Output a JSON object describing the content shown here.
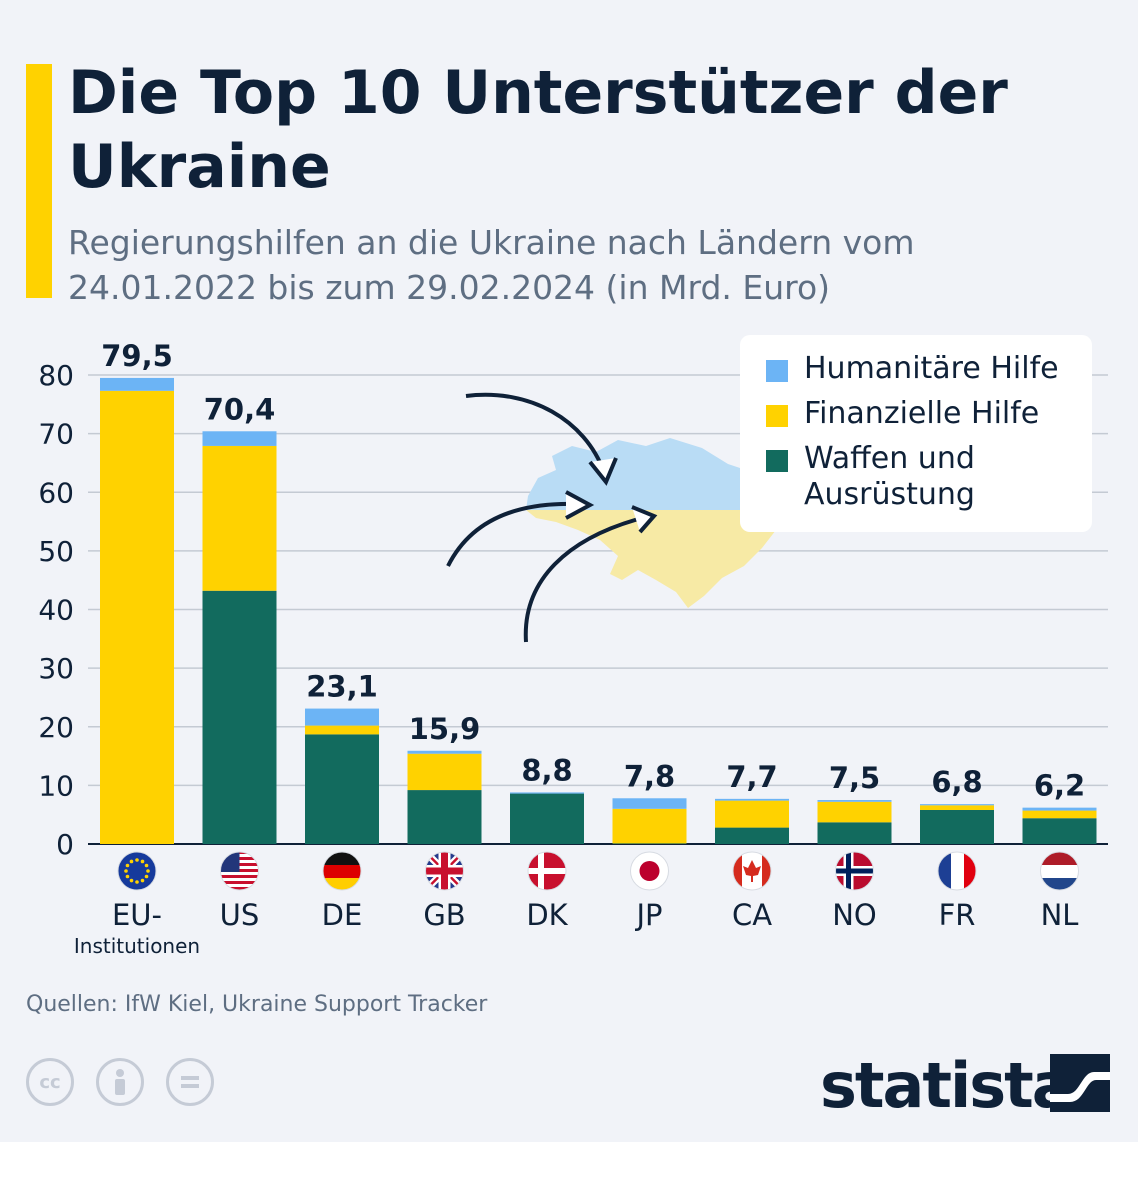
{
  "header": {
    "title": "Die Top 10 Unterstützer der Ukraine",
    "subtitle": "Regierungshilfen an die Ukraine nach Ländern vom 24.01.2022 bis zum 29.02.2024 (in Mrd. Euro)"
  },
  "legend": {
    "items": [
      {
        "label": "Humanitäre Hilfe",
        "color": "#6cb4f5"
      },
      {
        "label": "Finanzielle Hilfe",
        "color": "#ffd200"
      },
      {
        "label": "Waffen und Ausrüstung",
        "color": "#126b5e"
      }
    ]
  },
  "footer": {
    "source": "Quellen: IfW Kiel, Ukraine Support Tracker",
    "logo": "statista",
    "license_icons": [
      "cc-icon",
      "attribution-icon",
      "no-derivatives-icon"
    ]
  },
  "chart_data": {
    "type": "bar",
    "stacked": true,
    "categories": [
      "EU-Institutionen",
      "US",
      "DE",
      "GB",
      "DK",
      "JP",
      "CA",
      "NO",
      "FR",
      "NL"
    ],
    "category_labels": [
      {
        "main": "EU-",
        "sub": "Institutionen"
      },
      {
        "main": "US"
      },
      {
        "main": "DE"
      },
      {
        "main": "GB"
      },
      {
        "main": "DK"
      },
      {
        "main": "JP"
      },
      {
        "main": "CA"
      },
      {
        "main": "NO"
      },
      {
        "main": "FR"
      },
      {
        "main": "NL"
      }
    ],
    "flags": [
      "eu-flag-icon",
      "us-flag-icon",
      "de-flag-icon",
      "gb-flag-icon",
      "dk-flag-icon",
      "jp-flag-icon",
      "ca-flag-icon",
      "no-flag-icon",
      "fr-flag-icon",
      "nl-flag-icon"
    ],
    "totals": [
      79.5,
      70.4,
      23.1,
      15.9,
      8.8,
      7.8,
      7.7,
      7.5,
      6.8,
      6.2
    ],
    "total_labels": [
      "79,5",
      "70,4",
      "23,1",
      "15,9",
      "8,8",
      "7,8",
      "7,7",
      "7,5",
      "6,8",
      "6,2"
    ],
    "series": [
      {
        "name": "Waffen und Ausrüstung",
        "color": "#126b5e",
        "values": [
          0,
          43.2,
          18.7,
          9.2,
          8.6,
          0.1,
          2.8,
          3.7,
          5.8,
          4.4
        ]
      },
      {
        "name": "Finanzielle Hilfe",
        "color": "#ffd200",
        "values": [
          77.3,
          24.7,
          1.5,
          6.2,
          0.0,
          5.9,
          4.6,
          3.5,
          0.8,
          1.3
        ]
      },
      {
        "name": "Humanitäre Hilfe",
        "color": "#6cb4f5",
        "values": [
          2.2,
          2.5,
          2.9,
          0.5,
          0.2,
          1.8,
          0.3,
          0.3,
          0.2,
          0.5
        ]
      }
    ],
    "y_ticks": [
      0,
      10,
      20,
      30,
      40,
      50,
      60,
      70,
      80
    ],
    "ylim": [
      0,
      80
    ],
    "grid": true,
    "legend_position": "top-right"
  }
}
